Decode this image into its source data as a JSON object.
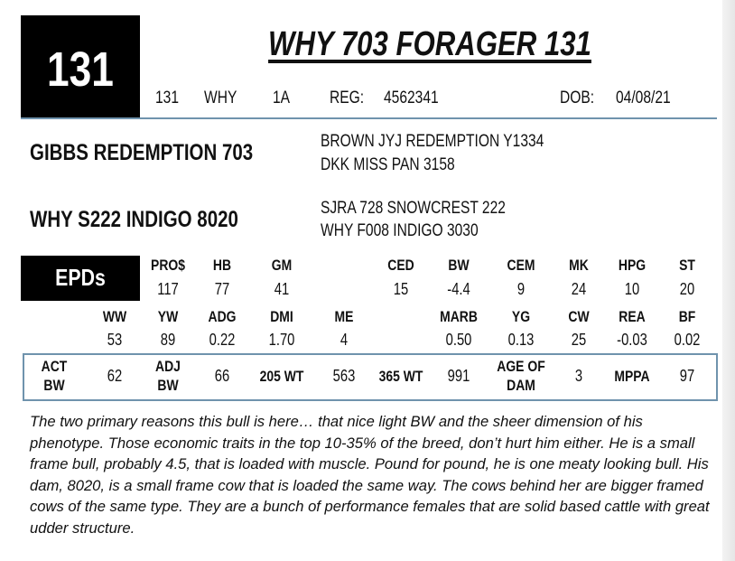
{
  "lot": {
    "number": "131",
    "title": "WHY 703 FORAGER 131"
  },
  "info": {
    "tattoo": "131",
    "prefix": "WHY",
    "id": "1A",
    "reg_label": "REG:",
    "reg": "4562341",
    "dob_label": "DOB:",
    "dob": "04/08/21"
  },
  "pedigree": {
    "sire": "GIBBS REDEMPTION 703",
    "sire_sire": "BROWN JYJ REDEMPTION Y1334",
    "sire_dam": "DKK MISS PAN 3158",
    "dam": "WHY S222 INDIGO 8020",
    "dam_sire": "SJRA 728 SNOWCREST 222",
    "dam_dam": "WHY F008 INDIGO 3030"
  },
  "epds": {
    "label": "EPDs",
    "row1": [
      {
        "h": "PRO$",
        "v": "117"
      },
      {
        "h": "HB",
        "v": "77"
      },
      {
        "h": "GM",
        "v": "41"
      },
      {
        "h": "CED",
        "v": "15"
      },
      {
        "h": "BW",
        "v": "-4.4"
      },
      {
        "h": "CEM",
        "v": "9"
      },
      {
        "h": "MK",
        "v": "24"
      },
      {
        "h": "HPG",
        "v": "10"
      },
      {
        "h": "ST",
        "v": "20"
      }
    ],
    "row2": [
      {
        "h": "WW",
        "v": "53"
      },
      {
        "h": "YW",
        "v": "89"
      },
      {
        "h": "ADG",
        "v": "0.22"
      },
      {
        "h": "DMI",
        "v": "1.70"
      },
      {
        "h": "ME",
        "v": "4"
      },
      {
        "h": "MARB",
        "v": "0.50"
      },
      {
        "h": "YG",
        "v": "0.13"
      },
      {
        "h": "CW",
        "v": "25"
      },
      {
        "h": "REA",
        "v": "-0.03"
      },
      {
        "h": "BF",
        "v": "0.02"
      }
    ]
  },
  "performance": [
    {
      "label": "ACT BW",
      "value": "62"
    },
    {
      "label": "ADJ BW",
      "value": "66"
    },
    {
      "label": "205 WT",
      "value": "563"
    },
    {
      "label": "365 WT",
      "value": "991"
    },
    {
      "label": "AGE OF DAM",
      "value": "3"
    },
    {
      "label": "MPPA",
      "value": "97"
    }
  ],
  "comment": "The two primary reasons this bull is here… that nice light BW and the sheer dimension of his phenotype. Those economic traits in the top 10-35% of the breed, don’t hurt him either.  He is a small frame bull, probably 4.5, that is loaded with muscle.  Pound for pound, he is one meaty looking bull.  His dam, 8020, is a small frame cow that is loaded the same way.  The cows behind her are bigger framed cows of the same type.  They are a bunch of performance females that are solid based cattle with great udder structure.",
  "colors": {
    "rule": "#6f93ad",
    "lot_box": "#000000"
  }
}
